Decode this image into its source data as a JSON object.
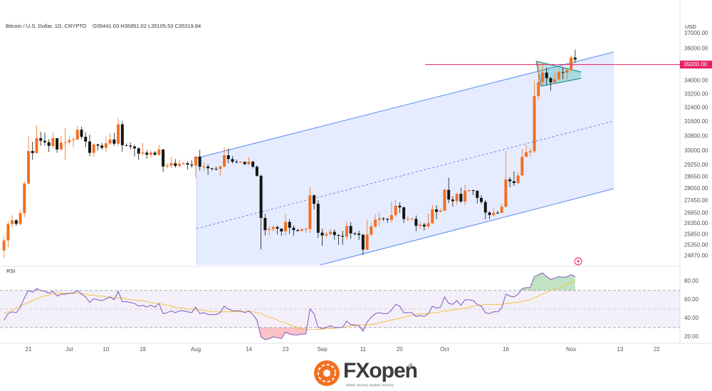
{
  "chart_data": {
    "type": "candlestick",
    "title": "Bitcoin / U.S. Dollar, 1D, CRYPTO",
    "subtitle": "O35441.03 H35951.02 L35105.53 C35319.84",
    "y_label": "USD",
    "log_scale": true,
    "up_color": "#f37021",
    "down_color": "#151515",
    "ylim": [
      24480,
      37900
    ],
    "yticks": [
      {
        "value": 37000,
        "label": "37000.00"
      },
      {
        "value": 36000,
        "label": "36000.00"
      },
      {
        "value": 34000,
        "label": "34000.00"
      },
      {
        "value": 33200,
        "label": "33200.00"
      },
      {
        "value": 32400,
        "label": "32400.00"
      },
      {
        "value": 31600,
        "label": "31600.00"
      },
      {
        "value": 30800,
        "label": "30800.00"
      },
      {
        "value": 30000,
        "label": "30000.00"
      },
      {
        "value": 29250,
        "label": "29250.00"
      },
      {
        "value": 28650,
        "label": "28650.00"
      },
      {
        "value": 28050,
        "label": "28050.00"
      },
      {
        "value": 27450,
        "label": "27450.00"
      },
      {
        "value": 26850,
        "label": "26850.00"
      },
      {
        "value": 26350,
        "label": "26350.00"
      },
      {
        "value": 25850,
        "label": "25850.00"
      },
      {
        "value": 25350,
        "label": "25350.00"
      },
      {
        "value": 24870,
        "label": "24870.00"
      }
    ],
    "hline": {
      "value": 35000,
      "label": "35000.00",
      "color": "#e91e63"
    },
    "categories": [
      null,
      null,
      null,
      null,
      null,
      null,
      "21",
      null,
      null,
      null,
      null,
      null,
      null,
      null,
      null,
      null,
      "Jul",
      null,
      null,
      null,
      null,
      null,
      null,
      null,
      null,
      "10",
      null,
      null,
      null,
      null,
      null,
      null,
      null,
      null,
      "19",
      null,
      null,
      null,
      null,
      null,
      null,
      null,
      null,
      null,
      null,
      null,
      null,
      "Aug",
      null,
      null,
      null,
      null,
      null,
      null,
      null,
      null,
      null,
      null,
      null,
      null,
      "14",
      null,
      null,
      null,
      null,
      null,
      null,
      null,
      null,
      "23",
      null,
      null,
      null,
      null,
      null,
      null,
      null,
      null,
      "Sep",
      null,
      null,
      null,
      null,
      null,
      null,
      null,
      null,
      null,
      "11",
      null,
      null,
      null,
      null,
      null,
      null,
      null,
      null,
      "20",
      null,
      null,
      null,
      null,
      null,
      null,
      null,
      null,
      null,
      null,
      "Oct",
      null,
      null,
      null,
      null,
      null,
      null,
      null,
      null,
      null,
      null,
      null,
      null,
      null,
      null,
      "16",
      null,
      null,
      null,
      null,
      null,
      null,
      null,
      null,
      null,
      null,
      null,
      null,
      null,
      null,
      null,
      "Nov",
      null,
      null,
      null,
      null,
      null,
      null,
      null,
      null,
      null,
      null,
      null,
      "13",
      null,
      null,
      null,
      null,
      null,
      null,
      null,
      null,
      "22"
    ],
    "open": [
      25120,
      25575,
      26330,
      26510,
      26340,
      26850,
      28310,
      30000,
      29890,
      30690,
      30550,
      30470,
      30270,
      30690,
      30080,
      30450,
      30470,
      30590,
      30620,
      31160,
      30770,
      30510,
      29900,
      30350,
      30290,
      30170,
      30410,
      30620,
      30390,
      31460,
      30310,
      30290,
      30240,
      30140,
      29860,
      29910,
      29800,
      29910,
      29800,
      30080,
      29180,
      29230,
      29350,
      29210,
      29310,
      29350,
      29280,
      29230,
      29700,
      29170,
      29180,
      29090,
      29060,
      29050,
      29180,
      29770,
      29570,
      29430,
      29400,
      29420,
      29300,
      29430,
      29170,
      28700,
      26620,
      26050,
      26100,
      26190,
      26120,
      25990,
      26430,
      26160,
      26050,
      26010,
      26090,
      26100,
      27720,
      27300,
      25930,
      25800,
      25870,
      25970,
      25820,
      25790,
      25750,
      26240,
      25900,
      25890,
      25830,
      25160,
      25840,
      26220,
      26530,
      26600,
      26570,
      26530,
      26760,
      27210,
      27130,
      26570,
      26580,
      26580,
      26250,
      26300,
      26220,
      26370,
      27030,
      26910,
      26970,
      27990,
      27510,
      27430,
      27790,
      27410,
      27950,
      27970,
      27940,
      27590,
      27390,
      26880,
      26760,
      26870,
      26860,
      27160,
      28520,
      28420,
      28330,
      28720,
      29690,
      29930,
      29990,
      33090,
      33920,
      34500,
      34160,
      33910,
      34090,
      34530,
      34500,
      34660,
      35441.03,
      null,
      null,
      null,
      null,
      null,
      null,
      null,
      null,
      null,
      null,
      null,
      null,
      null,
      null,
      null,
      null,
      null,
      null,
      null,
      null
    ],
    "high": [
      25750,
      26450,
      26750,
      26580,
      26990,
      28400,
      30800,
      30500,
      31400,
      31040,
      31000,
      30640,
      31000,
      30700,
      30830,
      31250,
      30800,
      30770,
      31390,
      31330,
      31030,
      30880,
      30420,
      30380,
      30430,
      30790,
      30950,
      30980,
      31810,
      31630,
      30400,
      30450,
      30330,
      30200,
      30420,
      30050,
      30060,
      30000,
      30330,
      30100,
      29370,
      29680,
      29570,
      29530,
      29420,
      29450,
      29520,
      29740,
      30060,
      29410,
      29300,
      29100,
      29170,
      29240,
      30180,
      30130,
      29730,
      29540,
      29470,
      29450,
      29670,
      29480,
      29240,
      28760,
      26820,
      26270,
      26260,
      26270,
      26130,
      26800,
      26560,
      26270,
      26120,
      26150,
      26170,
      28130,
      27760,
      27480,
      26110,
      25970,
      26100,
      26090,
      25860,
      26020,
      26440,
      26420,
      25950,
      26020,
      25880,
      26540,
      26390,
      26800,
      26880,
      26650,
      26630,
      27420,
      27490,
      27380,
      27160,
      26720,
      26640,
      26740,
      26430,
      26390,
      26830,
      27250,
      27230,
      27090,
      28050,
      28600,
      27680,
      27830,
      28100,
      28250,
      28010,
      28000,
      27980,
      27730,
      27480,
      26950,
      27130,
      26960,
      27300,
      30000,
      28620,
      28930,
      28890,
      30100,
      30340,
      30150,
      34000,
      35200,
      35090,
      34820,
      34240,
      34460,
      34730,
      34830,
      34720,
      35580,
      35951.02,
      null,
      null,
      null,
      null,
      null,
      null,
      null,
      null,
      null,
      null,
      null,
      null,
      null,
      null,
      null,
      null,
      null,
      null,
      null,
      null
    ],
    "low": [
      24800,
      25250,
      26170,
      26250,
      26260,
      26660,
      28260,
      29530,
      29860,
      30280,
      30300,
      29940,
      30130,
      29900,
      30040,
      29530,
      30330,
      30200,
      30610,
      30650,
      30200,
      29720,
      29700,
      30050,
      30060,
      29950,
      30320,
      30280,
      30250,
      29950,
      30250,
      30080,
      29700,
      29530,
      29760,
      29580,
      29620,
      29750,
      29730,
      28900,
      29080,
      29100,
      29120,
      29120,
      29260,
      29030,
      29110,
      28600,
      28960,
      28960,
      28750,
      28960,
      28980,
      28700,
      29130,
      29350,
      29340,
      29360,
      29380,
      29260,
      29250,
      29080,
      28650,
      25170,
      25800,
      25810,
      25980,
      25850,
      25790,
      25800,
      25870,
      25780,
      25980,
      25990,
      25920,
      25910,
      27030,
      25690,
      25330,
      25710,
      25800,
      25610,
      25380,
      25380,
      25620,
      25650,
      25800,
      25600,
      24920,
      25130,
      25770,
      26150,
      26240,
      26480,
      26390,
      26390,
      26670,
      26850,
      26390,
      26460,
      26510,
      26000,
      26110,
      26030,
      26120,
      26330,
      26560,
      26890,
      26940,
      27340,
      27160,
      27250,
      27350,
      27230,
      27870,
      27720,
      27320,
      27300,
      26560,
      26560,
      26700,
      26820,
      26850,
      27120,
      28120,
      28180,
      28280,
      28700,
      29660,
      29720,
      29900,
      32880,
      33700,
      33750,
      33410,
      33880,
      34040,
      34090,
      34070,
      34580,
      35105.53,
      null,
      null,
      null,
      null,
      null,
      null,
      null,
      null,
      null,
      null,
      null,
      null,
      null,
      null,
      null,
      null,
      null,
      null,
      null,
      null
    ],
    "close": [
      25575,
      26330,
      26510,
      26340,
      26850,
      28310,
      30000,
      29890,
      30690,
      30550,
      30470,
      30270,
      30690,
      30080,
      30450,
      30470,
      30590,
      30620,
      31160,
      30770,
      30510,
      29900,
      30350,
      30290,
      30170,
      30410,
      30620,
      30390,
      31460,
      30310,
      30290,
      30240,
      30140,
      29860,
      29910,
      29800,
      29910,
      29800,
      30080,
      29180,
      29230,
      29350,
      29210,
      29310,
      29350,
      29280,
      29230,
      29700,
      29170,
      29180,
      29090,
      29060,
      29050,
      29180,
      29770,
      29570,
      29430,
      29400,
      29420,
      29300,
      29430,
      29170,
      28700,
      26620,
      26050,
      26100,
      26190,
      26120,
      25990,
      26430,
      26160,
      26050,
      26010,
      26090,
      26100,
      27720,
      27300,
      25930,
      25800,
      25870,
      25970,
      25820,
      25790,
      25750,
      26240,
      25900,
      25890,
      25830,
      25160,
      25840,
      26220,
      26530,
      26600,
      26570,
      26530,
      26760,
      27210,
      27130,
      26570,
      26580,
      26580,
      26250,
      26300,
      26220,
      26370,
      27030,
      26910,
      26970,
      27990,
      27510,
      27430,
      27790,
      27410,
      27950,
      27970,
      27940,
      27590,
      27390,
      26880,
      26760,
      26870,
      26860,
      27160,
      28520,
      28420,
      28330,
      28720,
      29690,
      29930,
      29990,
      33090,
      33920,
      34500,
      34160,
      33910,
      34090,
      34530,
      34500,
      34660,
      35441.03,
      35319.84,
      null,
      null,
      null,
      null,
      null,
      null,
      null,
      null,
      null,
      null,
      null,
      null,
      null,
      null,
      null,
      null,
      null,
      null,
      null,
      null
    ],
    "rsi": {
      "label": "RSI",
      "color": "#7e57c2",
      "ma_color": "#f5c342",
      "overbought_color": "#4caf50",
      "oversold_color": "#f23645",
      "ylim": [
        13,
        96
      ],
      "yticks": [
        {
          "value": 80,
          "label": "80.00"
        },
        {
          "value": 60,
          "label": "60.00"
        },
        {
          "value": 40,
          "label": "40.00"
        },
        {
          "value": 20,
          "label": "20.00"
        }
      ],
      "levels": [
        70,
        50,
        30
      ],
      "values": [
        38,
        45,
        47,
        46,
        52,
        62,
        70,
        68,
        72,
        70,
        69,
        67,
        69,
        64,
        66,
        66,
        67,
        67,
        70,
        66,
        63,
        57,
        61,
        60,
        59,
        61,
        63,
        60,
        69,
        58,
        58,
        57,
        56,
        53,
        54,
        52,
        54,
        52,
        56,
        45,
        46,
        48,
        46,
        48,
        48,
        47,
        46,
        52,
        45,
        46,
        44,
        44,
        44,
        46,
        53,
        50,
        48,
        48,
        48,
        46,
        48,
        44,
        38,
        20,
        17,
        18,
        20,
        19,
        18,
        25,
        23,
        22,
        22,
        23,
        23,
        50,
        45,
        30,
        29,
        30,
        32,
        30,
        30,
        30,
        37,
        33,
        33,
        32,
        26,
        36,
        41,
        45,
        46,
        45,
        45,
        49,
        55,
        53,
        46,
        46,
        46,
        42,
        43,
        42,
        45,
        53,
        51,
        52,
        63,
        56,
        55,
        59,
        54,
        60,
        60,
        59,
        55,
        53,
        46,
        45,
        47,
        47,
        51,
        66,
        64,
        63,
        66,
        72,
        73,
        73,
        85,
        87,
        89,
        85,
        82,
        83,
        85,
        84,
        85,
        87,
        85,
        null,
        null,
        null,
        null,
        null,
        null,
        null,
        null,
        null,
        null,
        null,
        null,
        null,
        null,
        null,
        null,
        null,
        null,
        null,
        null
      ],
      "ma_values": [
        45,
        47,
        49,
        51,
        53,
        55,
        57,
        59,
        61,
        63,
        64,
        65,
        66,
        67,
        67,
        67,
        67,
        67,
        67,
        67,
        66,
        65,
        65,
        64,
        64,
        63,
        63,
        62,
        62,
        62,
        61,
        60,
        60,
        59,
        59,
        58,
        57,
        56,
        56,
        55,
        54,
        53,
        52,
        51,
        51,
        50,
        50,
        49,
        49,
        48,
        48,
        47,
        47,
        47,
        47,
        47,
        47,
        47,
        47,
        47,
        47,
        47,
        46,
        45,
        43,
        41,
        40,
        38,
        36,
        35,
        33,
        31,
        30,
        28,
        27,
        28,
        28,
        28,
        28,
        29,
        29,
        29,
        30,
        30,
        31,
        32,
        32,
        33,
        33,
        33,
        33,
        34,
        35,
        36,
        37,
        38,
        39,
        40,
        41,
        42,
        43,
        44,
        45,
        45,
        45,
        46,
        46,
        47,
        48,
        48,
        49,
        50,
        50,
        51,
        52,
        53,
        54,
        54,
        55,
        55,
        55,
        55,
        55,
        56,
        56,
        57,
        57,
        58,
        59,
        60,
        62,
        64,
        66,
        68,
        70,
        72,
        73,
        75,
        77,
        78,
        80,
        null,
        null,
        null,
        null,
        null,
        null,
        null,
        null,
        null,
        null,
        null,
        null,
        null,
        null,
        null,
        null,
        null,
        null,
        null,
        null
      ]
    }
  },
  "brand": {
    "name": "FXopen",
    "mark": "®",
    "tagline": "when money makes money"
  }
}
